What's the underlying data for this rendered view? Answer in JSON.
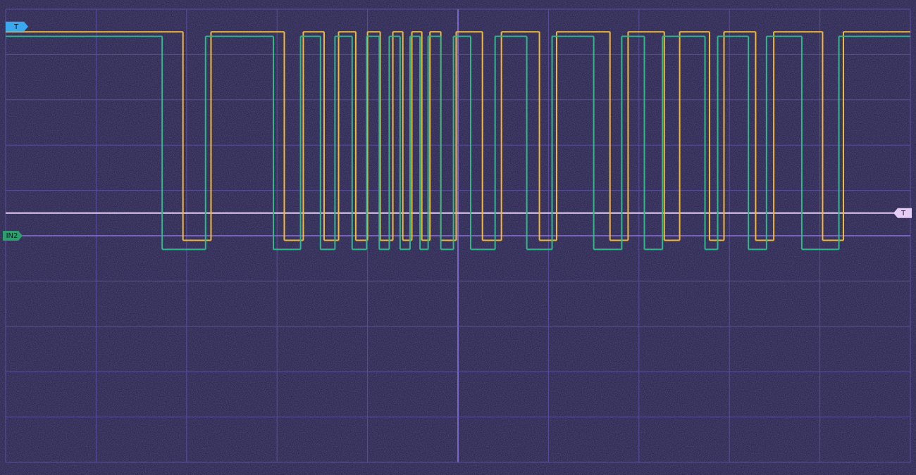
{
  "chart_data": {
    "type": "line",
    "xlim": [
      0,
      10
    ],
    "xticks": [
      0,
      1,
      2,
      3,
      4,
      5,
      6,
      7,
      8,
      9,
      10
    ],
    "ylim": [
      -5,
      5
    ],
    "yticks": [
      -5,
      -4,
      -3,
      -2,
      -1,
      0,
      1,
      2,
      3,
      4,
      5
    ],
    "grid": true,
    "series": [
      {
        "color": "#f2b935",
        "high": 4.5,
        "low": -0.1,
        "edges": [
          1.96,
          2.27,
          3.08,
          3.29,
          3.52,
          3.68,
          3.87,
          4.0,
          4.14,
          4.28,
          4.39,
          4.49,
          4.6,
          4.69,
          4.81,
          4.98,
          5.27,
          5.48,
          5.9,
          6.09,
          6.68,
          6.88,
          7.28,
          7.45,
          7.78,
          7.94,
          8.29,
          8.49,
          9.03,
          9.26
        ]
      },
      {
        "color": "#2fb889",
        "high": 4.4,
        "low": -0.3,
        "edges": [
          1.73,
          2.21,
          2.96,
          3.26,
          3.48,
          3.64,
          3.83,
          3.99,
          4.13,
          4.24,
          4.36,
          4.47,
          4.58,
          4.67,
          4.81,
          4.95,
          5.14,
          5.41,
          5.76,
          6.04,
          6.5,
          6.81,
          7.06,
          7.26,
          7.73,
          7.87,
          8.21,
          8.41,
          8.8,
          9.21
        ]
      }
    ],
    "time_marker": {
      "label": "T",
      "level": 4.6,
      "color": "#3aa8ec"
    },
    "trigger": {
      "label": "T",
      "level": 0.5,
      "color": "#e6cdf5"
    },
    "ground": {
      "label": "IN2",
      "level": 0,
      "color": "#2e9e6e"
    }
  }
}
